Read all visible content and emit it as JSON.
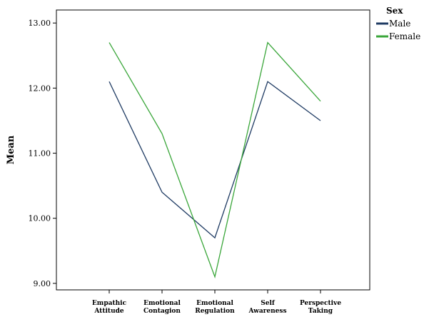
{
  "chart_data": {
    "type": "line",
    "categories": [
      "Empathic Attitude",
      "Emotional Contagion",
      "Emotional Regulation",
      "Self Awareness",
      "Perspective Taking"
    ],
    "category_lines": [
      [
        "Empathic",
        "Attitude"
      ],
      [
        "Emotional",
        "Contagion"
      ],
      [
        "Emotional",
        "Regulation"
      ],
      [
        "Self",
        "Awareness"
      ],
      [
        "Perspective",
        "Taking"
      ]
    ],
    "series": [
      {
        "name": "Male",
        "color": "#1f3b63",
        "values": [
          12.1,
          10.4,
          9.7,
          12.1,
          11.5
        ]
      },
      {
        "name": "Female",
        "color": "#3aa63a",
        "values": [
          12.7,
          11.3,
          9.1,
          12.7,
          11.8
        ]
      }
    ],
    "ylabel": "Mean",
    "ylim": [
      8.9,
      13.2
    ],
    "yticks": [
      "9.00",
      "10.00",
      "11.00",
      "12.00",
      "13.00"
    ],
    "legend": {
      "title": "Sex",
      "placement": "top-right"
    },
    "grid": false
  }
}
